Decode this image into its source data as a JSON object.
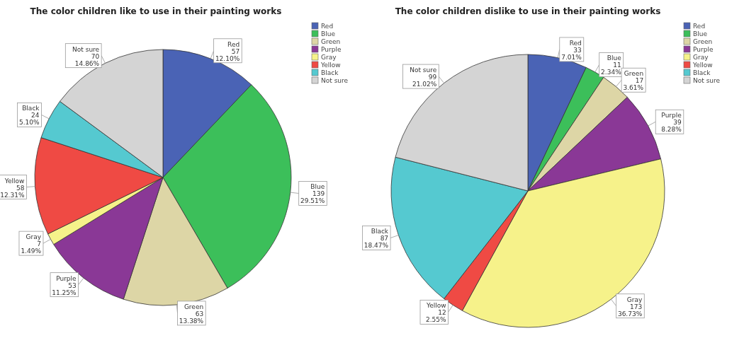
{
  "chart_data": [
    {
      "type": "pie",
      "title": "The color children like to use in their painting works",
      "categories": [
        "Red",
        "Blue",
        "Green",
        "Purple",
        "Gray",
        "Yellow",
        "Black",
        "Not sure"
      ],
      "values": [
        57,
        139,
        63,
        53,
        7,
        58,
        24,
        70
      ],
      "colors": [
        "#4a63b5",
        "#3cbf5a",
        "#ddd6a6",
        "#8a3896",
        "#f6f28a",
        "#ef4a44",
        "#55c9d0",
        "#d4d4d4"
      ],
      "value_labels": [
        "57\n12.10%",
        "139\n29.51%",
        "63\n13.38%",
        "53\n11.25%",
        "7\n1.49%",
        "58\n12.31%",
        "24\n5.10%",
        "70\n14.86%"
      ],
      "legend": "top right"
    },
    {
      "type": "pie",
      "title": "The color children dislike to use in their painting works",
      "categories": [
        "Red",
        "Blue",
        "Green",
        "Purple",
        "Gray",
        "Yellow",
        "Black",
        "Not sure"
      ],
      "values": [
        33,
        11,
        17,
        39,
        173,
        12,
        87,
        99
      ],
      "colors": [
        "#4a63b5",
        "#3cbf5a",
        "#ddd6a6",
        "#8a3896",
        "#f6f28a",
        "#ef4a44",
        "#55c9d0",
        "#d4d4d4"
      ],
      "value_labels": [
        "33\n7.01%",
        "11\n2.34%",
        "17\n3.61%",
        "39\n8.28%",
        "173\n36.73%",
        "12\n2.55%",
        "87\n18.47%",
        "99\n21.02%"
      ],
      "legend": "top right"
    }
  ]
}
